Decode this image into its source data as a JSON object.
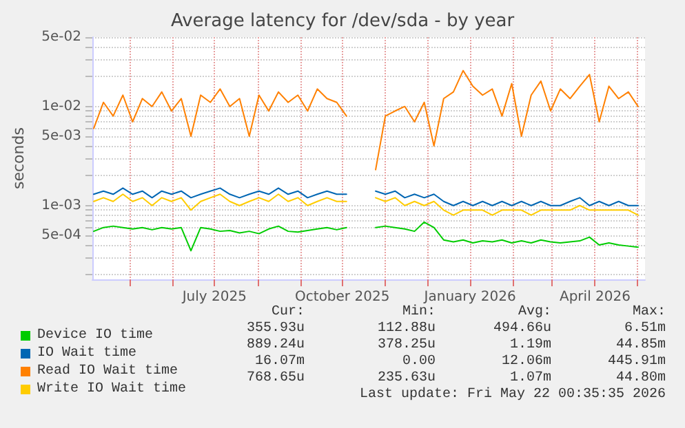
{
  "chart_data": {
    "type": "line",
    "title": "Average latency for /dev/sda - by year",
    "ylabel": "seconds",
    "log": "y",
    "grid": true,
    "legend": "bottom",
    "marker": "none",
    "line_style": "solid",
    "x": [
      "2025-04-05",
      "2025-04-12",
      "2025-04-19",
      "2025-04-26",
      "2025-05-03",
      "2025-05-10",
      "2025-05-17",
      "2025-05-24",
      "2025-05-31",
      "2025-06-07",
      "2025-06-14",
      "2025-06-21",
      "2025-06-28",
      "2025-07-05",
      "2025-07-12",
      "2025-07-19",
      "2025-07-26",
      "2025-08-02",
      "2025-08-09",
      "2025-08-16",
      "2025-08-23",
      "2025-08-30",
      "2025-09-06",
      "2025-09-13",
      "2025-09-20",
      "2025-09-27",
      "2025-10-04",
      "2025-10-11",
      "2025-10-18",
      "2025-10-25",
      "2025-11-01",
      "2025-11-08",
      "2025-11-15",
      "2025-11-22",
      "2025-11-29",
      "2025-12-06",
      "2025-12-13",
      "2025-12-20",
      "2025-12-27",
      "2026-01-03",
      "2026-01-10",
      "2026-01-17",
      "2026-01-24",
      "2026-01-31",
      "2026-02-07",
      "2026-02-14",
      "2026-02-21",
      "2026-02-28",
      "2026-03-07",
      "2026-03-14",
      "2026-03-21",
      "2026-03-28",
      "2026-04-04",
      "2026-04-11",
      "2026-04-18",
      "2026-04-25",
      "2026-05-02"
    ],
    "xlim": [
      "2025-04-04",
      "2026-05-07"
    ],
    "xticks": [
      {
        "value": "2025-05-01",
        "label": null
      },
      {
        "value": "2025-06-01",
        "label": null
      },
      {
        "value": "2025-07-01",
        "label": "July 2025"
      },
      {
        "value": "2025-08-01",
        "label": null
      },
      {
        "value": "2025-09-01",
        "label": null
      },
      {
        "value": "2025-10-01",
        "label": "October 2025"
      },
      {
        "value": "2025-11-01",
        "label": null
      },
      {
        "value": "2025-12-01",
        "label": null
      },
      {
        "value": "2026-01-01",
        "label": "January 2026"
      },
      {
        "value": "2026-02-01",
        "label": null
      },
      {
        "value": "2026-03-01",
        "label": null
      },
      {
        "value": "2026-04-01",
        "label": "April 2026"
      },
      {
        "value": "2026-05-01",
        "label": null
      }
    ],
    "ylim": [
      0.00018,
      0.05
    ],
    "yticks": [
      {
        "value": 0.0002,
        "label": null
      },
      {
        "value": 0.0003,
        "label": null
      },
      {
        "value": 0.0004,
        "label": null
      },
      {
        "value": 0.0005,
        "label": "5e-04"
      },
      {
        "value": 0.0006,
        "label": null
      },
      {
        "value": 0.0007,
        "label": null
      },
      {
        "value": 0.0008,
        "label": null
      },
      {
        "value": 0.0009,
        "label": null
      },
      {
        "value": 0.001,
        "label": "1e-03"
      },
      {
        "value": 0.002,
        "label": null
      },
      {
        "value": 0.003,
        "label": null
      },
      {
        "value": 0.004,
        "label": null
      },
      {
        "value": 0.005,
        "label": "5e-03"
      },
      {
        "value": 0.006,
        "label": null
      },
      {
        "value": 0.007,
        "label": null
      },
      {
        "value": 0.008,
        "label": null
      },
      {
        "value": 0.009,
        "label": null
      },
      {
        "value": 0.01,
        "label": "1e-02"
      },
      {
        "value": 0.02,
        "label": null
      },
      {
        "value": 0.03,
        "label": null
      },
      {
        "value": 0.04,
        "label": null
      },
      {
        "value": 0.05,
        "label": "5e-02"
      }
    ],
    "series": [
      {
        "name": "Device IO time",
        "color": "#00cc00",
        "values": [
          0.00055,
          0.0006,
          0.00062,
          0.0006,
          0.00058,
          0.0006,
          0.00057,
          0.0006,
          0.00058,
          0.0006,
          0.00035,
          0.0006,
          0.00058,
          0.00055,
          0.00056,
          0.00053,
          0.00055,
          0.00052,
          0.00058,
          0.00062,
          0.00055,
          0.00054,
          0.00056,
          0.00058,
          0.0006,
          0.00057,
          0.0006,
          null,
          null,
          0.0006,
          0.00062,
          0.0006,
          0.00058,
          0.00055,
          0.00068,
          0.0006,
          0.00045,
          0.00043,
          0.00045,
          0.00042,
          0.00044,
          0.00043,
          0.00045,
          0.00042,
          0.00044,
          0.00042,
          0.00045,
          0.00043,
          0.00042,
          0.00043,
          0.00044,
          0.00048,
          0.0004,
          0.00042,
          0.0004,
          0.00039,
          0.00038
        ]
      },
      {
        "name": "IO Wait time",
        "color": "#0066b3",
        "values": [
          0.0013,
          0.0014,
          0.0013,
          0.0015,
          0.0013,
          0.0014,
          0.0012,
          0.0014,
          0.0013,
          0.0014,
          0.0012,
          0.0013,
          0.0014,
          0.0015,
          0.0013,
          0.0012,
          0.0013,
          0.0014,
          0.0013,
          0.0015,
          0.0013,
          0.0014,
          0.0012,
          0.0013,
          0.0014,
          0.0013,
          0.0013,
          null,
          null,
          0.0014,
          0.0013,
          0.0014,
          0.0012,
          0.0013,
          0.0012,
          0.0013,
          0.0011,
          0.001,
          0.0011,
          0.001,
          0.0011,
          0.001,
          0.0011,
          0.001,
          0.0011,
          0.001,
          0.0011,
          0.001,
          0.001,
          0.0011,
          0.0012,
          0.001,
          0.0011,
          0.001,
          0.0011,
          0.001,
          0.001
        ]
      },
      {
        "name": "Read IO Wait time",
        "color": "#ff8000",
        "values": [
          0.006,
          0.011,
          0.008,
          0.013,
          0.007,
          0.012,
          0.01,
          0.014,
          0.009,
          0.012,
          0.005,
          0.013,
          0.011,
          0.015,
          0.01,
          0.012,
          0.005,
          0.013,
          0.009,
          0.014,
          0.011,
          0.013,
          0.009,
          0.015,
          0.012,
          0.011,
          0.008,
          null,
          null,
          0.0023,
          0.008,
          0.009,
          0.01,
          0.007,
          0.011,
          0.004,
          0.012,
          0.014,
          0.023,
          0.016,
          0.013,
          0.015,
          0.008,
          0.017,
          0.005,
          0.013,
          0.018,
          0.009,
          0.015,
          0.012,
          0.016,
          0.021,
          0.007,
          0.016,
          0.012,
          0.014,
          0.01
        ]
      },
      {
        "name": "Write IO Wait time",
        "color": "#ffcc00",
        "values": [
          0.0011,
          0.0012,
          0.0011,
          0.0013,
          0.0011,
          0.0012,
          0.001,
          0.0012,
          0.0011,
          0.0012,
          0.0009,
          0.0011,
          0.0012,
          0.0013,
          0.0011,
          0.001,
          0.0011,
          0.0012,
          0.0011,
          0.0013,
          0.0011,
          0.0012,
          0.001,
          0.0011,
          0.0012,
          0.0011,
          0.0011,
          null,
          null,
          0.0012,
          0.0011,
          0.0012,
          0.001,
          0.0011,
          0.001,
          0.0011,
          0.0009,
          0.0008,
          0.0009,
          0.0009,
          0.0009,
          0.0008,
          0.0009,
          0.0009,
          0.0009,
          0.0008,
          0.0009,
          0.0009,
          0.0009,
          0.0009,
          0.001,
          0.0009,
          0.0009,
          0.0009,
          0.0009,
          0.0009,
          0.0008
        ]
      }
    ],
    "annotations": [
      "Cur:",
      "Min:",
      "Avg:",
      "Max:",
      "355.93u",
      "112.88u",
      "494.66u",
      "6.51m",
      "889.24u",
      "378.25u",
      "1.19m",
      "44.85m",
      "16.07m",
      "0.00",
      "12.06m",
      "445.91m",
      "768.65u",
      "235.63u",
      "1.07m",
      "44.80m",
      "Last update: Fri May 22 00:35:35 2026"
    ]
  }
}
